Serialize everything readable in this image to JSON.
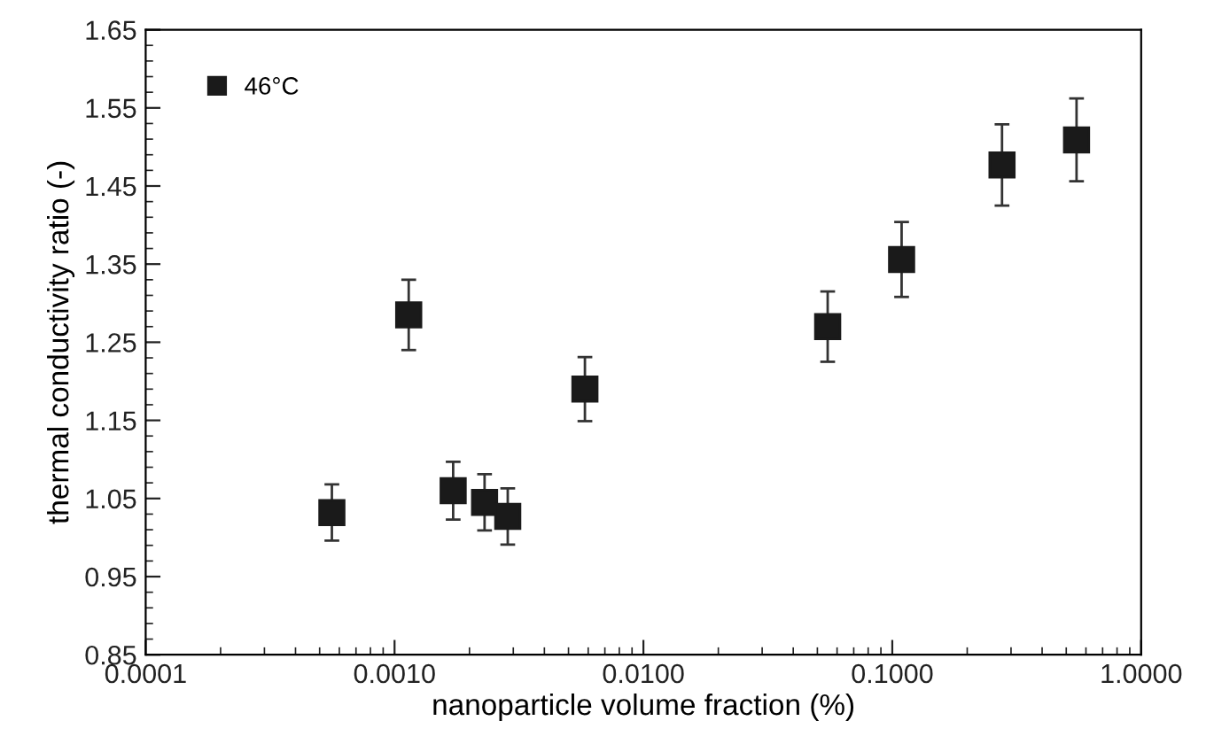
{
  "chart_data": {
    "type": "scatter",
    "xlabel": "nanoparticle volume fraction (%)",
    "ylabel": "thermal conductivity ratio (-)",
    "x": [
      0.00056,
      0.00114,
      0.00172,
      0.0023,
      0.00285,
      0.00582,
      0.055,
      0.109,
      0.276,
      0.55
    ],
    "series": [
      {
        "name": "46°C",
        "color": "#1a1a1a",
        "values": [
          1.032,
          1.285,
          1.06,
          1.045,
          1.027,
          1.19,
          1.27,
          1.356,
          1.477,
          1.509
        ],
        "errors": [
          0.036,
          0.045,
          0.037,
          0.036,
          0.036,
          0.041,
          0.045,
          0.048,
          0.052,
          0.053
        ]
      }
    ],
    "log": "x",
    "xlim": [
      0.0001,
      1.0
    ],
    "xticks": [
      {
        "value": 0.0001,
        "label": "0.0001"
      },
      {
        "value": 0.001,
        "label": "0.0010"
      },
      {
        "value": 0.01,
        "label": "0.0100"
      },
      {
        "value": 0.1,
        "label": "0.1000"
      },
      {
        "value": 1.0,
        "label": "1.0000"
      }
    ],
    "ylim": [
      0.85,
      1.65
    ],
    "yticks": [
      0.85,
      0.95,
      1.05,
      1.15,
      1.25,
      1.35,
      1.45,
      1.55,
      1.65
    ],
    "grid": false,
    "legend": "top left",
    "marker": "square"
  }
}
